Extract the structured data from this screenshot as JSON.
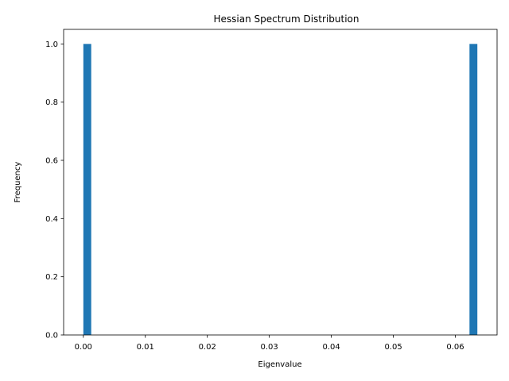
{
  "chart_data": {
    "type": "bar",
    "title": "Hessian Spectrum Distribution",
    "xlabel": "Eigenvalue",
    "ylabel": "Frequency",
    "xlim": [
      -0.00318,
      0.06673
    ],
    "ylim": [
      0,
      1.05
    ],
    "xticks": [
      "0.00",
      "0.01",
      "0.02",
      "0.03",
      "0.04",
      "0.05",
      "0.06"
    ],
    "yticks": [
      "0.0",
      "0.2",
      "0.4",
      "0.6",
      "0.8",
      "1.0"
    ],
    "bars": [
      {
        "x_start": 0.0,
        "x_end": 0.00127,
        "value": 1
      },
      {
        "x_start": 0.06228,
        "x_end": 0.06355,
        "value": 1
      }
    ],
    "bar_color": "#1f77b4",
    "grid": false,
    "legend": "none"
  }
}
